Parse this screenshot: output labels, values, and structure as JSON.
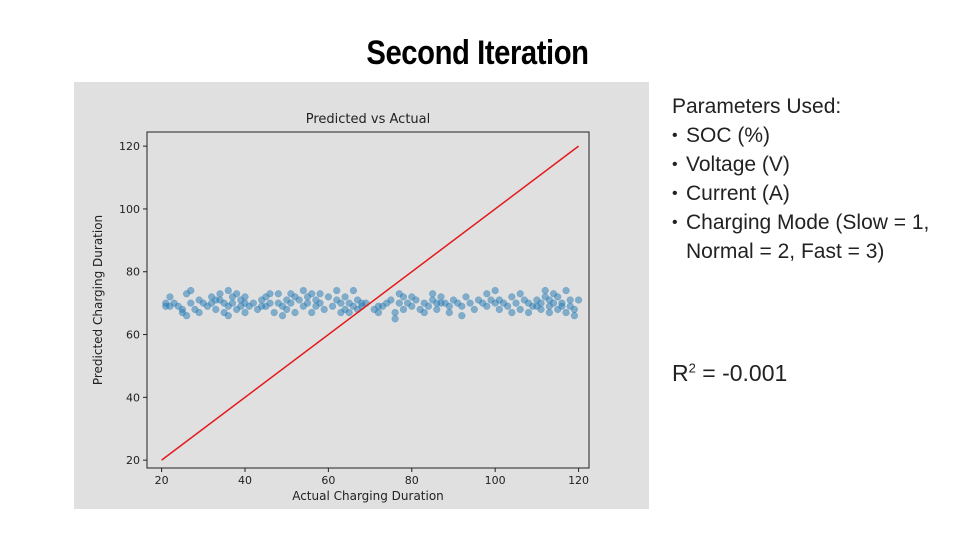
{
  "slide": {
    "title": "Second Iteration"
  },
  "parameters": {
    "title": "Parameters Used:",
    "items": [
      "SOC (%)",
      "Voltage (V)",
      "Current (A)",
      "Charging Mode (Slow = 1, Normal = 2, Fast = 3)"
    ]
  },
  "metric": {
    "symbol": "R",
    "superscript": "2",
    "value": " = -0.001"
  },
  "colors": {
    "scatter": "#1f77b4",
    "ideal_line": "#e31a1c",
    "figure_bg": "#e0e0e0"
  },
  "chart_data": {
    "type": "scatter",
    "title": "Predicted vs Actual",
    "xlabel": "Actual Charging Duration",
    "ylabel": "Predicted Charging Duration",
    "xlim": [
      16.5,
      122.5
    ],
    "ylim": [
      17.5,
      124.5
    ],
    "xticks": [
      20,
      40,
      60,
      80,
      100,
      120
    ],
    "yticks": [
      20,
      40,
      60,
      80,
      100,
      120
    ],
    "grid": false,
    "reference_line": {
      "x": [
        20,
        120
      ],
      "y": [
        20,
        120
      ]
    },
    "points": [
      [
        21,
        70
      ],
      [
        21,
        69
      ],
      [
        22,
        72
      ],
      [
        23,
        70
      ],
      [
        24,
        69
      ],
      [
        25,
        68
      ],
      [
        25,
        67
      ],
      [
        26,
        73
      ],
      [
        26,
        66
      ],
      [
        27,
        70
      ],
      [
        27,
        74
      ],
      [
        28,
        68
      ],
      [
        29,
        71
      ],
      [
        30,
        70
      ],
      [
        31,
        69
      ],
      [
        32,
        72
      ],
      [
        32,
        70
      ],
      [
        33,
        68
      ],
      [
        34,
        73
      ],
      [
        34,
        71
      ],
      [
        35,
        70
      ],
      [
        35,
        67
      ],
      [
        36,
        74
      ],
      [
        36,
        69
      ],
      [
        36,
        66
      ],
      [
        37,
        72
      ],
      [
        37,
        70
      ],
      [
        38,
        73
      ],
      [
        38,
        68
      ],
      [
        39,
        71
      ],
      [
        39,
        69
      ],
      [
        40,
        72
      ],
      [
        40,
        70
      ],
      [
        40,
        67
      ],
      [
        41,
        69
      ],
      [
        42,
        70
      ],
      [
        43,
        68
      ],
      [
        44,
        71
      ],
      [
        45,
        72
      ],
      [
        45,
        69
      ],
      [
        46,
        70
      ],
      [
        47,
        67
      ],
      [
        48,
        73
      ],
      [
        48,
        70
      ],
      [
        49,
        69
      ],
      [
        49,
        66
      ],
      [
        50,
        71
      ],
      [
        50,
        68
      ],
      [
        51,
        73
      ],
      [
        51,
        70
      ],
      [
        52,
        72
      ],
      [
        52,
        67
      ],
      [
        53,
        71
      ],
      [
        54,
        74
      ],
      [
        54,
        69
      ],
      [
        55,
        72
      ],
      [
        55,
        70
      ],
      [
        56,
        73
      ],
      [
        56,
        67
      ],
      [
        57,
        71
      ],
      [
        57,
        69
      ],
      [
        58,
        70
      ],
      [
        59,
        68
      ],
      [
        60,
        72
      ],
      [
        61,
        69
      ],
      [
        62,
        71
      ],
      [
        62,
        74
      ],
      [
        63,
        70
      ],
      [
        63,
        67
      ],
      [
        64,
        68
      ],
      [
        64,
        72
      ],
      [
        65,
        70
      ],
      [
        65,
        67
      ],
      [
        66,
        69
      ],
      [
        66,
        74
      ],
      [
        67,
        71
      ],
      [
        67,
        68
      ],
      [
        68,
        70
      ],
      [
        68,
        69
      ],
      [
        69,
        70
      ],
      [
        71,
        68
      ],
      [
        72,
        67
      ],
      [
        73,
        69
      ],
      [
        74,
        70
      ],
      [
        75,
        71
      ],
      [
        76,
        67
      ],
      [
        76,
        65
      ],
      [
        77,
        73
      ],
      [
        77,
        70
      ],
      [
        78,
        72
      ],
      [
        78,
        68
      ],
      [
        79,
        70
      ],
      [
        80,
        72
      ],
      [
        80,
        69
      ],
      [
        81,
        71
      ],
      [
        82,
        68
      ],
      [
        83,
        70
      ],
      [
        83,
        67
      ],
      [
        84,
        69
      ],
      [
        85,
        73
      ],
      [
        85,
        71
      ],
      [
        86,
        70
      ],
      [
        86,
        68
      ],
      [
        87,
        72
      ],
      [
        88,
        70
      ],
      [
        89,
        69
      ],
      [
        89,
        67
      ],
      [
        90,
        71
      ],
      [
        91,
        70
      ],
      [
        92,
        69
      ],
      [
        92,
        66
      ],
      [
        93,
        72
      ],
      [
        94,
        70
      ],
      [
        95,
        68
      ],
      [
        96,
        71
      ],
      [
        97,
        70
      ],
      [
        98,
        69
      ],
      [
        98,
        73
      ],
      [
        99,
        71
      ],
      [
        100,
        70
      ],
      [
        100,
        74
      ],
      [
        101,
        68
      ],
      [
        101,
        71
      ],
      [
        102,
        70
      ],
      [
        103,
        69
      ],
      [
        104,
        72
      ],
      [
        104,
        67
      ],
      [
        105,
        70
      ],
      [
        106,
        73
      ],
      [
        106,
        68
      ],
      [
        107,
        71
      ],
      [
        108,
        70
      ],
      [
        108,
        67
      ],
      [
        109,
        69
      ],
      [
        110,
        71
      ],
      [
        111,
        70
      ],
      [
        111,
        68
      ],
      [
        112,
        72
      ],
      [
        112,
        74
      ],
      [
        113,
        69
      ],
      [
        113,
        71
      ],
      [
        114,
        73
      ],
      [
        114,
        70
      ],
      [
        115,
        68
      ],
      [
        115,
        72
      ],
      [
        116,
        70
      ],
      [
        117,
        74
      ],
      [
        117,
        67
      ],
      [
        118,
        69
      ],
      [
        118,
        71
      ],
      [
        119,
        68
      ],
      [
        119,
        66
      ],
      [
        120,
        71
      ],
      [
        116,
        69
      ],
      [
        113,
        67
      ],
      [
        110,
        69
      ],
      [
        87,
        70
      ],
      [
        72,
        69
      ],
      [
        58,
        73
      ],
      [
        46,
        73
      ],
      [
        44,
        69
      ],
      [
        33,
        71
      ],
      [
        29,
        67
      ],
      [
        22,
        69
      ]
    ]
  }
}
